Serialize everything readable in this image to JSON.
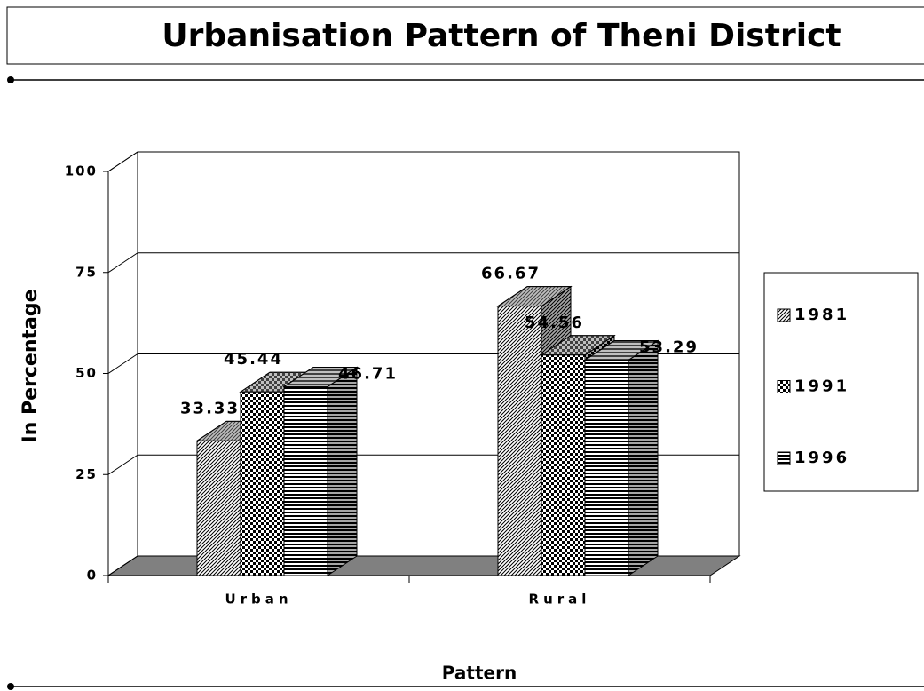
{
  "chart_data": {
    "type": "bar3d",
    "title": "Urbanisation Pattern of Theni District",
    "x_label": "Pattern",
    "y_label": "In Percentage",
    "categories": [
      "Urban",
      "Rural"
    ],
    "series": [
      {
        "name": "1981",
        "pattern": "diagonal",
        "values": [
          33.33,
          66.67
        ]
      },
      {
        "name": "1991",
        "pattern": "checker",
        "values": [
          45.44,
          54.56
        ]
      },
      {
        "name": "1996",
        "pattern": "horizontal",
        "values": [
          46.71,
          53.29
        ]
      }
    ],
    "ylim": [
      0,
      100
    ],
    "yticks": [
      0,
      25,
      50,
      75,
      100
    ],
    "grid": true,
    "legend": "right"
  }
}
